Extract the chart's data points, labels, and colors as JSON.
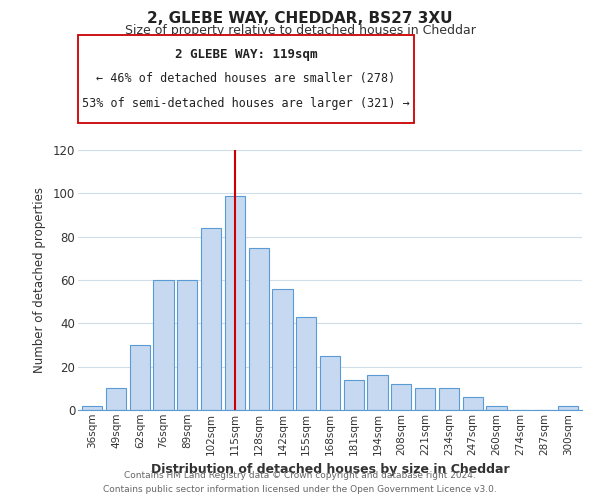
{
  "title": "2, GLEBE WAY, CHEDDAR, BS27 3XU",
  "subtitle": "Size of property relative to detached houses in Cheddar",
  "xlabel": "Distribution of detached houses by size in Cheddar",
  "ylabel": "Number of detached properties",
  "categories": [
    "36sqm",
    "49sqm",
    "62sqm",
    "76sqm",
    "89sqm",
    "102sqm",
    "115sqm",
    "128sqm",
    "142sqm",
    "155sqm",
    "168sqm",
    "181sqm",
    "194sqm",
    "208sqm",
    "221sqm",
    "234sqm",
    "247sqm",
    "260sqm",
    "274sqm",
    "287sqm",
    "300sqm"
  ],
  "values": [
    2,
    10,
    30,
    60,
    60,
    84,
    99,
    75,
    56,
    43,
    25,
    14,
    16,
    12,
    10,
    10,
    6,
    2,
    0,
    0,
    2
  ],
  "bar_color": "#c6d9f0",
  "bar_edge_color": "#5b9bd5",
  "vline_x_index": 6,
  "vline_color": "#cc0000",
  "ylim": [
    0,
    120
  ],
  "yticks": [
    0,
    20,
    40,
    60,
    80,
    100,
    120
  ],
  "annotation_title": "2 GLEBE WAY: 119sqm",
  "annotation_line1": "← 46% of detached houses are smaller (278)",
  "annotation_line2": "53% of semi-detached houses are larger (321) →",
  "annotation_box_color": "#ffffff",
  "annotation_box_edge": "#cc0000",
  "footer1": "Contains HM Land Registry data © Crown copyright and database right 2024.",
  "footer2": "Contains public sector information licensed under the Open Government Licence v3.0.",
  "background_color": "#ffffff",
  "grid_color": "#d0dce8"
}
